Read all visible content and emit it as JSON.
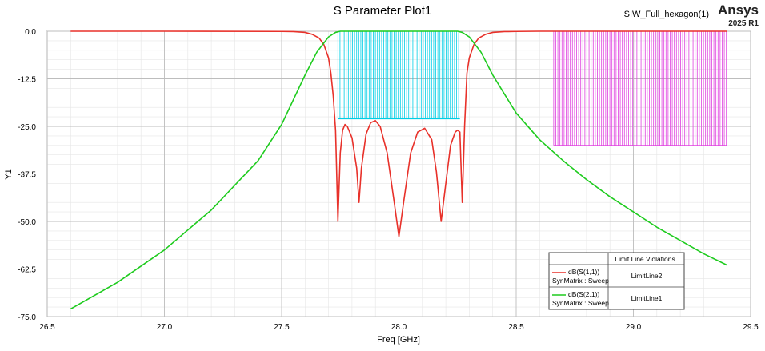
{
  "header": {
    "title": "S Parameter Plot1",
    "project": "SIW_Full_hexagon(1)",
    "brand": "Ansys",
    "version": "2025 R1"
  },
  "legend": {
    "header": "Limit Line Violations",
    "entries": [
      {
        "trace": "dB(S(1,1))",
        "source": "SynMatrix : Sweep",
        "violation": "LimitLine2",
        "color": "#e8312a"
      },
      {
        "trace": "dB(S(2,1))",
        "source": "SynMatrix : Sweep",
        "violation": "LimitLine1",
        "color": "#1ecb1e"
      }
    ]
  },
  "chart_data": {
    "type": "line",
    "title": "S Parameter Plot1",
    "xlabel": "Freq [GHz]",
    "ylabel": "Y1",
    "xlim": [
      26.5,
      29.5
    ],
    "ylim": [
      -75.0,
      0.0
    ],
    "xticks": [
      "26.5",
      "27.0",
      "27.5",
      "28.0",
      "28.5",
      "29.0",
      "29.5"
    ],
    "yticks": [
      "0.0",
      "-12.5",
      "-25.0",
      "-37.5",
      "-50.0",
      "-62.5",
      "-75.0"
    ],
    "grid": true,
    "legend_position": "bottom-right",
    "series": [
      {
        "name": "dB(S(1,1))",
        "color": "#e8312a",
        "x": [
          26.6,
          27.0,
          27.5,
          27.55,
          27.6,
          27.63,
          27.66,
          27.68,
          27.7,
          27.71,
          27.72,
          27.73,
          27.74,
          27.75,
          27.76,
          27.77,
          27.78,
          27.8,
          27.82,
          27.83,
          27.84,
          27.86,
          27.88,
          27.9,
          27.92,
          27.95,
          27.98,
          28.0,
          28.02,
          28.05,
          28.08,
          28.11,
          28.14,
          28.16,
          28.18,
          28.2,
          28.22,
          28.24,
          28.25,
          28.26,
          28.27,
          28.28,
          28.29,
          28.3,
          28.32,
          28.34,
          28.37,
          28.4,
          28.45,
          28.5,
          28.6,
          29.0,
          29.4
        ],
        "y": [
          0.0,
          0.0,
          -0.05,
          -0.1,
          -0.3,
          -0.8,
          -1.8,
          -3.5,
          -7.0,
          -11.0,
          -17.0,
          -26.0,
          -50.0,
          -32.0,
          -26.0,
          -24.5,
          -25.0,
          -28.0,
          -36.0,
          -45.0,
          -36.0,
          -27.0,
          -24.0,
          -23.5,
          -25.0,
          -32.0,
          -45.0,
          -54.0,
          -45.0,
          -32.0,
          -26.5,
          -25.5,
          -28.5,
          -37.0,
          -50.0,
          -40.0,
          -30.0,
          -26.5,
          -26.0,
          -26.5,
          -45.0,
          -25.0,
          -11.0,
          -7.0,
          -3.5,
          -1.8,
          -0.8,
          -0.3,
          -0.1,
          -0.05,
          0.0,
          0.0,
          0.0
        ]
      },
      {
        "name": "dB(S(2,1))",
        "color": "#1ecb1e",
        "x": [
          26.6,
          26.8,
          27.0,
          27.2,
          27.4,
          27.5,
          27.55,
          27.6,
          27.65,
          27.7,
          27.73,
          27.75,
          28.0,
          28.25,
          28.27,
          28.3,
          28.35,
          28.4,
          28.45,
          28.5,
          28.6,
          28.7,
          28.8,
          28.9,
          29.0,
          29.1,
          29.2,
          29.3,
          29.4
        ],
        "y": [
          -73.0,
          -66.0,
          -57.5,
          -47.0,
          -34.0,
          -24.5,
          -18.0,
          -11.5,
          -5.5,
          -1.5,
          -0.3,
          0.0,
          0.0,
          0.0,
          -0.3,
          -1.5,
          -5.5,
          -11.5,
          -16.5,
          -21.5,
          -28.5,
          -34.0,
          -39.0,
          -43.5,
          -47.5,
          -51.5,
          -55.0,
          -58.5,
          -61.5
        ]
      }
    ],
    "limit_lines": [
      {
        "name": "LimitLine1",
        "color": "#00cfe6",
        "x_range": [
          27.74,
          28.26
        ],
        "y_range": [
          -23.0,
          0.0
        ]
      },
      {
        "name": "LimitLine2",
        "color": "#e040e0",
        "x_range": [
          28.66,
          29.4
        ],
        "y_range": [
          -30.0,
          0.0
        ]
      }
    ]
  }
}
